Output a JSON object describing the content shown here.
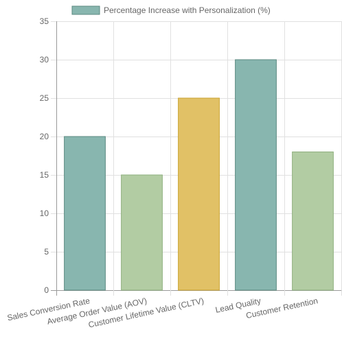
{
  "chart_data": {
    "type": "bar",
    "categories": [
      "Sales Conversion Rate",
      "Average Order Value (AOV)",
      "Customer Lifetime Value (CLTV)",
      "Lead Quality",
      "Customer Retention"
    ],
    "series": [
      {
        "name": "Percentage Increase with Personalization (%)",
        "values": [
          20,
          15,
          25,
          30,
          18
        ]
      }
    ],
    "bar_colors": [
      "#88b6af",
      "#b2cca3",
      "#e1c166",
      "#88b6af",
      "#b2cca3"
    ],
    "bar_border_colors": [
      "#5b8a80",
      "#8fb07f",
      "#c9a230",
      "#5b8a80",
      "#8fb07f"
    ],
    "ylim": [
      0,
      35
    ],
    "yticks": [
      0,
      5,
      10,
      15,
      20,
      25,
      30,
      35
    ],
    "grid": true,
    "legend_position": "top"
  }
}
